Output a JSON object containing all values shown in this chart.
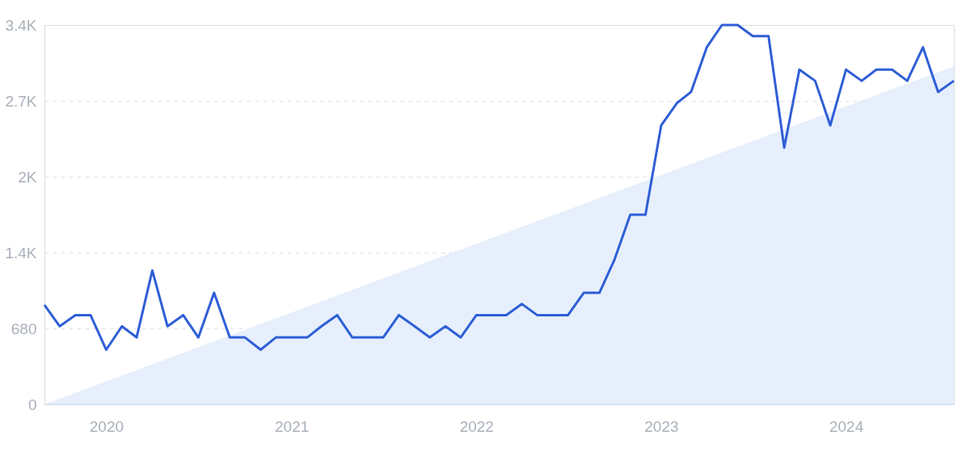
{
  "chart_data": {
    "type": "line",
    "x": [
      "2019-09",
      "2019-10",
      "2019-11",
      "2019-12",
      "2020-01",
      "2020-02",
      "2020-03",
      "2020-04",
      "2020-05",
      "2020-06",
      "2020-07",
      "2020-08",
      "2020-09",
      "2020-10",
      "2020-11",
      "2020-12",
      "2021-01",
      "2021-02",
      "2021-03",
      "2021-04",
      "2021-05",
      "2021-06",
      "2021-07",
      "2021-08",
      "2021-09",
      "2021-10",
      "2021-11",
      "2021-12",
      "2022-01",
      "2022-02",
      "2022-03",
      "2022-04",
      "2022-05",
      "2022-06",
      "2022-07",
      "2022-08",
      "2022-09",
      "2022-10",
      "2022-11",
      "2022-12",
      "2023-01",
      "2023-02",
      "2023-03",
      "2023-04",
      "2023-05",
      "2023-06",
      "2023-07",
      "2023-08",
      "2023-09",
      "2023-10",
      "2023-11",
      "2023-12",
      "2024-01",
      "2024-02",
      "2024-03",
      "2024-04",
      "2024-05",
      "2024-06",
      "2024-07",
      "2024-08"
    ],
    "series": [
      {
        "type": "area",
        "color": "#e3edfb",
        "x": [
          "2019-09",
          "2024-08"
        ],
        "values": [
          0,
          3030
        ]
      },
      {
        "color": "#2f5fd6",
        "values": [
          890,
          700,
          800,
          800,
          490,
          700,
          600,
          1200,
          700,
          800,
          600,
          1000,
          600,
          600,
          490,
          600,
          600,
          600,
          700,
          800,
          600,
          600,
          600,
          800,
          700,
          600,
          700,
          600,
          800,
          800,
          800,
          900,
          800,
          800,
          800,
          1000,
          1000,
          1300,
          1700,
          1700,
          2500,
          2700,
          2800,
          3200,
          3400,
          3400,
          3300,
          3300,
          2300,
          3000,
          2900,
          2500,
          3000,
          2900,
          3000,
          3000,
          2900,
          3200,
          2800,
          2900
        ]
      }
    ],
    "xlim": [
      "2019-09",
      "2024-08"
    ],
    "xticks": [
      {
        "value": "2020",
        "label": "2020"
      },
      {
        "value": "2021",
        "label": "2021"
      },
      {
        "value": "2022",
        "label": "2022"
      },
      {
        "value": "2023",
        "label": "2023"
      },
      {
        "value": "2024",
        "label": "2024"
      }
    ],
    "ylim": [
      0,
      3400
    ],
    "yticks": [
      0,
      680,
      {
        "value": 1360,
        "label": "1.4K"
      },
      {
        "value": 2040,
        "label": "2K"
      },
      {
        "value": 2720,
        "label": "2.7K"
      },
      {
        "value": 3400,
        "label": "3.4K"
      }
    ],
    "grid": "y",
    "marker": "none",
    "line_style": "solid"
  }
}
